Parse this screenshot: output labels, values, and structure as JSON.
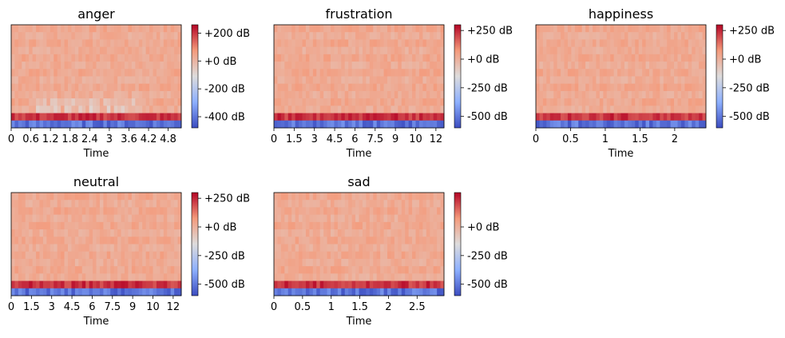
{
  "chart_data": [
    {
      "type": "heatmap",
      "title": "anger",
      "xlabel": "Time",
      "x_ticks": [
        "0",
        "0.6",
        "1.2",
        "1.8",
        "2.4",
        "3",
        "3.6",
        "4.2",
        "4.8"
      ],
      "x_tick_values": [
        0,
        0.6,
        1.2,
        1.8,
        2.4,
        3,
        3.6,
        4.2,
        4.8
      ],
      "xlim": [
        0,
        5.2
      ],
      "colorbar": {
        "labels": [
          "+200 dB",
          "+0 dB",
          "-200 dB",
          "-400 dB"
        ],
        "values": [
          200,
          0,
          -200,
          -400
        ],
        "range": [
          -480,
          260
        ]
      },
      "colormap": "coolwarm"
    },
    {
      "type": "heatmap",
      "title": "frustration",
      "xlabel": "Time",
      "x_ticks": [
        "0",
        "1.5",
        "3",
        "4.5",
        "6",
        "7.5",
        "9",
        "10",
        "12"
      ],
      "x_tick_values": [
        0,
        1.5,
        3,
        4.5,
        6,
        7.5,
        9,
        10.5,
        12
      ],
      "xlim": [
        0,
        12.6
      ],
      "colorbar": {
        "labels": [
          "+250 dB",
          "+0 dB",
          "-250 dB",
          "-500 dB"
        ],
        "values": [
          250,
          0,
          -250,
          -500
        ],
        "range": [
          -600,
          300
        ]
      },
      "colormap": "coolwarm"
    },
    {
      "type": "heatmap",
      "title": "happiness",
      "xlabel": "Time",
      "x_ticks": [
        "0",
        "0.5",
        "1",
        "1.5",
        "2"
      ],
      "x_tick_values": [
        0,
        0.5,
        1,
        1.5,
        2
      ],
      "xlim": [
        0,
        2.45
      ],
      "colorbar": {
        "labels": [
          "+250 dB",
          "+0 dB",
          "-250 dB",
          "-500 dB"
        ],
        "values": [
          250,
          0,
          -250,
          -500
        ],
        "range": [
          -600,
          300
        ]
      },
      "colormap": "coolwarm"
    },
    {
      "type": "heatmap",
      "title": "neutral",
      "xlabel": "Time",
      "x_ticks": [
        "0",
        "1.5",
        "3",
        "4.5",
        "6",
        "7.5",
        "9",
        "10",
        "12"
      ],
      "x_tick_values": [
        0,
        1.5,
        3,
        4.5,
        6,
        7.5,
        9,
        10.5,
        12
      ],
      "xlim": [
        0,
        12.6
      ],
      "colorbar": {
        "labels": [
          "+250 dB",
          "+0 dB",
          "-250 dB",
          "-500 dB"
        ],
        "values": [
          250,
          0,
          -250,
          -500
        ],
        "range": [
          -600,
          300
        ]
      },
      "colormap": "coolwarm"
    },
    {
      "type": "heatmap",
      "title": "sad",
      "xlabel": "Time",
      "x_ticks": [
        "0",
        "0.5",
        "1",
        "1.5",
        "2",
        "2.5"
      ],
      "x_tick_values": [
        0,
        0.5,
        1,
        1.5,
        2,
        2.5
      ],
      "xlim": [
        0,
        2.97
      ],
      "colorbar": {
        "labels": [
          "+0 dB",
          "-250 dB",
          "-500 dB"
        ],
        "values": [
          0,
          -250,
          -500
        ],
        "range": [
          -600,
          300
        ]
      },
      "colormap": "coolwarm"
    }
  ]
}
